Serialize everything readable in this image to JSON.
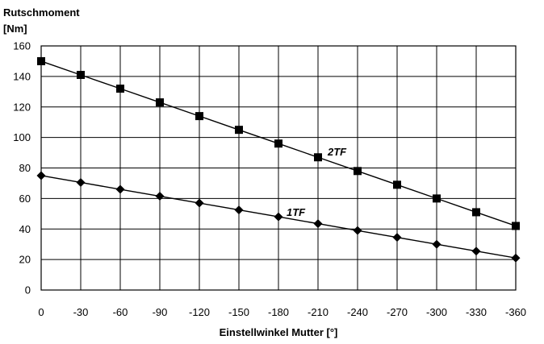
{
  "chart_data": {
    "type": "line",
    "ylabel": "Rutschmoment",
    "ylabel_unit": "[Nm]",
    "xlabel": "Einstellwinkel Mutter [°]",
    "x": [
      0,
      -30,
      -60,
      -90,
      -120,
      -150,
      -180,
      -210,
      -240,
      -270,
      -300,
      -330,
      -360
    ],
    "x_tick_labels": [
      "0",
      "-30",
      "-60",
      "-90",
      "-120",
      "-150",
      "-180",
      "-210",
      "-240",
      "-270",
      "-300",
      "-330",
      "-360"
    ],
    "y_ticks": [
      0,
      20,
      40,
      60,
      80,
      100,
      120,
      140,
      160
    ],
    "ylim": [
      0,
      160
    ],
    "grid": true,
    "legend": "none",
    "series": [
      {
        "name": "2TF",
        "marker": "square",
        "color": "#000000",
        "values": [
          150,
          141,
          132,
          123,
          114,
          105,
          96,
          87,
          78,
          69,
          60,
          51,
          42
        ]
      },
      {
        "name": "1TF",
        "marker": "diamond",
        "color": "#000000",
        "values": [
          75,
          70.5,
          66,
          61.5,
          57,
          52.5,
          48,
          43.5,
          39,
          34.5,
          30,
          25.5,
          21
        ]
      }
    ]
  }
}
